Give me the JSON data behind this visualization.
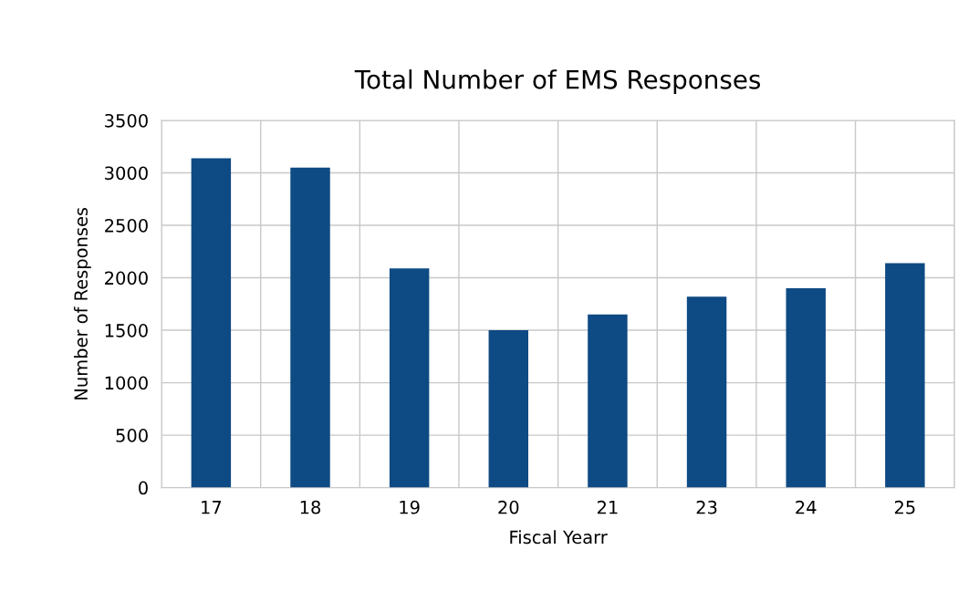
{
  "chart_data": {
    "type": "bar",
    "title": "Total Number of EMS Responses",
    "xlabel": "Fiscal Yearr",
    "ylabel": "Number of Responses",
    "categories": [
      "17",
      "18",
      "19",
      "20",
      "21",
      "23",
      "24",
      "25"
    ],
    "values": [
      3140,
      3050,
      2090,
      1500,
      1650,
      1820,
      1900,
      2140
    ],
    "color": "#0e4a84",
    "ylim": [
      0,
      3500
    ],
    "yticks": [
      0,
      500,
      1000,
      1500,
      2000,
      2500,
      3000,
      3500
    ],
    "grid": true
  }
}
